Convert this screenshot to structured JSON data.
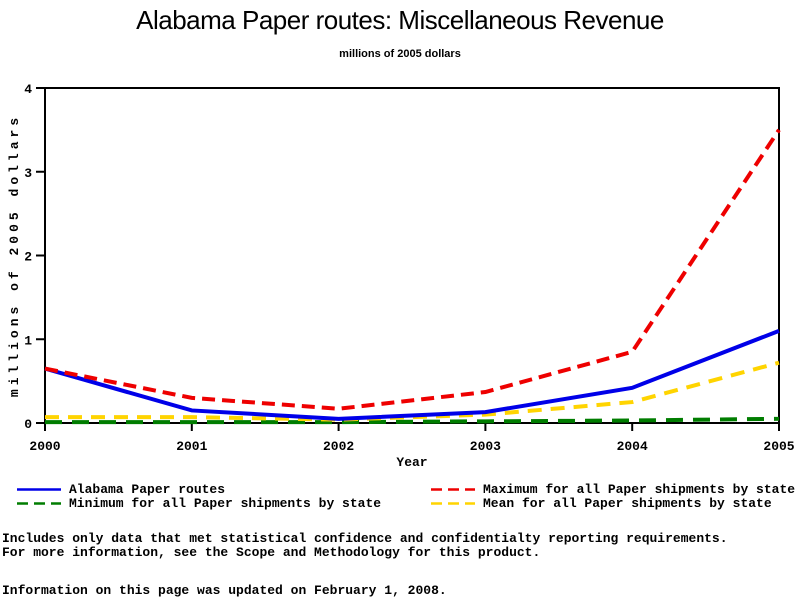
{
  "chart_data": {
    "type": "line",
    "title": "Alabama Paper routes: Miscellaneous Revenue",
    "subtitle": "millions of 2005 dollars",
    "xlabel": "Year",
    "ylabel": "millions of 2005 dollars",
    "x": [
      2000,
      2001,
      2002,
      2003,
      2004,
      2005
    ],
    "ylim": [
      0,
      4
    ],
    "yticks": [
      0,
      1,
      2,
      3,
      4
    ],
    "grid": false,
    "legend_position": "bottom-two-columns",
    "frame": true,
    "draw_order": [
      2,
      3,
      0,
      1
    ],
    "series": [
      {
        "name": "Alabama Paper routes",
        "color": "#0000e8",
        "style": "solid",
        "dasharray": "",
        "values": [
          0.65,
          0.15,
          0.05,
          0.13,
          0.42,
          1.1
        ]
      },
      {
        "name": "Maximum for all Paper shipments by state",
        "color": "#ee0000",
        "style": "dashed",
        "dasharray": "13 7",
        "values": [
          0.65,
          0.3,
          0.17,
          0.37,
          0.85,
          3.5
        ]
      },
      {
        "name": "Minimum for all Paper shipments by state",
        "color": "#007d00",
        "style": "dashed",
        "dasharray": "17 10",
        "values": [
          0.01,
          0.01,
          0.01,
          0.02,
          0.03,
          0.05
        ]
      },
      {
        "name": "Mean for all Paper shipments by state",
        "color": "#ffd400",
        "style": "dashed",
        "dasharray": "14 9",
        "values": [
          0.07,
          0.07,
          0.04,
          0.1,
          0.25,
          0.72
        ]
      }
    ]
  },
  "footnotes": [
    "Includes only data that met statistical confidence and confidentialty reporting requirements.",
    "For more information, see the Scope and Methodology for this product."
  ],
  "updated_note": "Information on this page was updated on February 1, 2008."
}
